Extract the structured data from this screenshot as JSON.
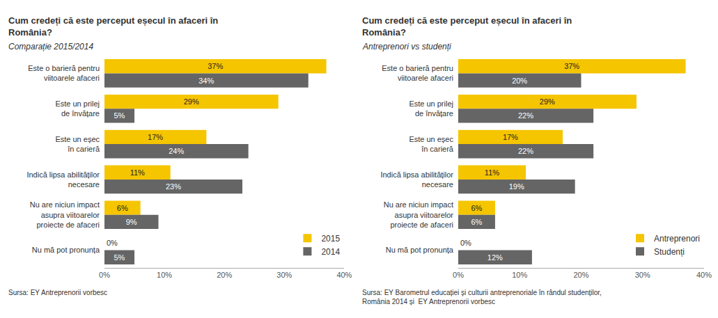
{
  "chart_data": [
    {
      "type": "bar",
      "orientation": "horizontal",
      "title": "Cum credeți că este perceput eșecul în afaceri în\nRomânia?",
      "subtitle": "Comparație 2015/2014",
      "categories": [
        "Este o barieră pentru\nviitoarele afaceri",
        "Este un prilej\nde învățare",
        "Este un eșec\nîn carieră",
        "Indică lipsa abilităților\nnecesare",
        "Nu are niciun impact\nasupra viitoarelor\nproiecte de afaceri",
        "Nu mă pot pronunța"
      ],
      "series": [
        {
          "name": "2015",
          "color": "#F5C500",
          "values": [
            37,
            29,
            17,
            11,
            6,
            0
          ],
          "value_labels": [
            "37%",
            "29%",
            "17%",
            "11%",
            "6%",
            "0%"
          ]
        },
        {
          "name": "2014",
          "color": "#656565",
          "values": [
            34,
            5,
            24,
            23,
            9,
            5
          ],
          "value_labels": [
            "34%",
            "5%",
            "24%",
            "23%",
            "9%",
            "5%"
          ]
        }
      ],
      "xlim": [
        0,
        40
      ],
      "xticks": [
        {
          "value": 0,
          "label": "0%"
        },
        {
          "value": 10,
          "label": "10%"
        },
        {
          "value": 20,
          "label": "20%"
        },
        {
          "value": 30,
          "label": "30%"
        },
        {
          "value": 40,
          "label": "40%"
        }
      ],
      "grid": false,
      "legend": "lower right",
      "data_labels": true,
      "annotations": [
        "Sursa: EY Antreprenorii vorbesc"
      ]
    },
    {
      "type": "bar",
      "orientation": "horizontal",
      "title": "Cum credeți că este perceput eșecul în afaceri în\nRomânia?",
      "subtitle": "Antreprenori vs studenți",
      "categories": [
        "Este o barieră pentru\nviitoarele afaceri",
        "Este un prilej\nde învățare",
        "Este un eșec\nîn carieră",
        "Indică lipsa abilităților\nnecesare",
        "Nu are niciun impact\nasupra viitoarelor\nproiecte de afaceri",
        "Nu mă pot pronunța"
      ],
      "series": [
        {
          "name": "Antreprenori",
          "color": "#F5C500",
          "values": [
            37,
            29,
            17,
            11,
            6,
            0
          ],
          "value_labels": [
            "37%",
            "29%",
            "17%",
            "11%",
            "6%",
            "0%"
          ]
        },
        {
          "name": "Studenți",
          "color": "#656565",
          "values": [
            20,
            22,
            22,
            19,
            6,
            12
          ],
          "value_labels": [
            "20%",
            "22%",
            "22%",
            "19%",
            "6%",
            "12%"
          ]
        }
      ],
      "xlim": [
        0,
        40
      ],
      "xticks": [
        {
          "value": 0,
          "label": "0%"
        },
        {
          "value": 10,
          "label": "10%"
        },
        {
          "value": 20,
          "label": "20%"
        },
        {
          "value": 30,
          "label": "30%"
        },
        {
          "value": 40,
          "label": "40%"
        }
      ],
      "grid": false,
      "legend": "lower right",
      "data_labels": true,
      "annotations": [
        "Sursa: EY Barometrul educației și culturii antreprenoriale în rândul studenților,\nRomânia 2014 și  EY Antreprenorii vorbesc"
      ]
    }
  ]
}
